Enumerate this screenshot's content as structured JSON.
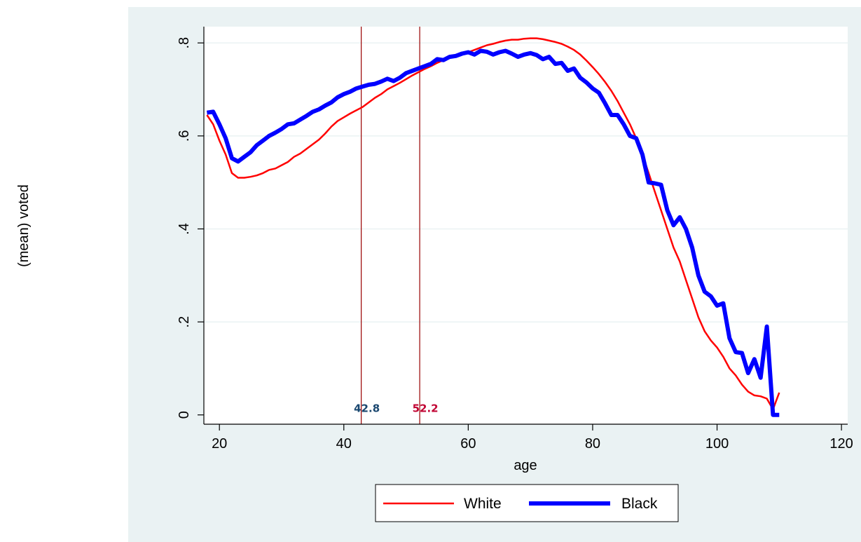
{
  "chart_data": {
    "type": "line",
    "title": "",
    "xlabel": "age",
    "ylabel": "(mean) voted",
    "xlim": [
      17.5,
      121
    ],
    "ylim": [
      -0.02,
      0.835
    ],
    "x_ticks": [
      20,
      40,
      60,
      80,
      100,
      120
    ],
    "x_tick_labels": [
      "20",
      "40",
      "60",
      "80",
      "100",
      "120"
    ],
    "y_ticks": [
      0,
      0.2,
      0.4,
      0.6,
      0.8
    ],
    "y_tick_labels": [
      "0",
      ".2",
      ".4",
      ".6",
      ".8"
    ],
    "y_tick_labels_rotated": true,
    "grid": "horizontal",
    "colors": {
      "outer_background": "#eaf2f3",
      "plot_background": "#ffffff",
      "grid": "#eaf2f3",
      "white_series": "#ff0000",
      "black_series": "#0000ff",
      "reference_lines": "#990000",
      "label_42": "#1a476f",
      "label_52": "#c10534"
    },
    "reference_lines": [
      {
        "x": 42.8,
        "label": "42.8",
        "color": "#1a476f"
      },
      {
        "x": 52.2,
        "label": "52.2",
        "color": "#c10534"
      }
    ],
    "legend": {
      "position": "bottom-center",
      "entries": [
        "White",
        "Black"
      ]
    },
    "series": [
      {
        "name": "White",
        "color": "#ff0000",
        "width": "thin",
        "points": [
          [
            18,
            0.645
          ],
          [
            19,
            0.625
          ],
          [
            20,
            0.59
          ],
          [
            21,
            0.56
          ],
          [
            22,
            0.52
          ],
          [
            23,
            0.51
          ],
          [
            24,
            0.51
          ],
          [
            25,
            0.512
          ],
          [
            26,
            0.515
          ],
          [
            27,
            0.52
          ],
          [
            28,
            0.527
          ],
          [
            29,
            0.53
          ],
          [
            30,
            0.537
          ],
          [
            31,
            0.544
          ],
          [
            32,
            0.555
          ],
          [
            33,
            0.562
          ],
          [
            34,
            0.572
          ],
          [
            35,
            0.582
          ],
          [
            36,
            0.592
          ],
          [
            37,
            0.605
          ],
          [
            38,
            0.62
          ],
          [
            39,
            0.632
          ],
          [
            40,
            0.64
          ],
          [
            41,
            0.648
          ],
          [
            42,
            0.655
          ],
          [
            43,
            0.662
          ],
          [
            44,
            0.672
          ],
          [
            45,
            0.682
          ],
          [
            46,
            0.69
          ],
          [
            47,
            0.7
          ],
          [
            48,
            0.707
          ],
          [
            49,
            0.714
          ],
          [
            50,
            0.722
          ],
          [
            51,
            0.73
          ],
          [
            52,
            0.737
          ],
          [
            53,
            0.744
          ],
          [
            54,
            0.75
          ],
          [
            55,
            0.757
          ],
          [
            56,
            0.763
          ],
          [
            57,
            0.768
          ],
          [
            58,
            0.772
          ],
          [
            59,
            0.776
          ],
          [
            60,
            0.78
          ],
          [
            61,
            0.785
          ],
          [
            62,
            0.79
          ],
          [
            63,
            0.795
          ],
          [
            64,
            0.798
          ],
          [
            65,
            0.802
          ],
          [
            66,
            0.805
          ],
          [
            67,
            0.807
          ],
          [
            68,
            0.807
          ],
          [
            69,
            0.809
          ],
          [
            70,
            0.81
          ],
          [
            71,
            0.81
          ],
          [
            72,
            0.808
          ],
          [
            73,
            0.805
          ],
          [
            74,
            0.802
          ],
          [
            75,
            0.798
          ],
          [
            76,
            0.792
          ],
          [
            77,
            0.785
          ],
          [
            78,
            0.775
          ],
          [
            79,
            0.762
          ],
          [
            80,
            0.748
          ],
          [
            81,
            0.733
          ],
          [
            82,
            0.716
          ],
          [
            83,
            0.697
          ],
          [
            84,
            0.675
          ],
          [
            85,
            0.65
          ],
          [
            86,
            0.625
          ],
          [
            87,
            0.595
          ],
          [
            88,
            0.56
          ],
          [
            89,
            0.52
          ],
          [
            90,
            0.48
          ],
          [
            91,
            0.44
          ],
          [
            92,
            0.4
          ],
          [
            93,
            0.36
          ],
          [
            94,
            0.33
          ],
          [
            95,
            0.29
          ],
          [
            96,
            0.25
          ],
          [
            97,
            0.21
          ],
          [
            98,
            0.18
          ],
          [
            99,
            0.16
          ],
          [
            100,
            0.145
          ],
          [
            101,
            0.125
          ],
          [
            102,
            0.1
          ],
          [
            103,
            0.085
          ],
          [
            104,
            0.065
          ],
          [
            105,
            0.05
          ],
          [
            106,
            0.042
          ],
          [
            107,
            0.04
          ],
          [
            108,
            0.035
          ],
          [
            109,
            0.012
          ],
          [
            110,
            0.048
          ]
        ]
      },
      {
        "name": "Black",
        "color": "#0000ff",
        "width": "thick",
        "points": [
          [
            18,
            0.65
          ],
          [
            19,
            0.652
          ],
          [
            20,
            0.625
          ],
          [
            21,
            0.595
          ],
          [
            22,
            0.552
          ],
          [
            23,
            0.545
          ],
          [
            24,
            0.555
          ],
          [
            25,
            0.565
          ],
          [
            26,
            0.58
          ],
          [
            27,
            0.59
          ],
          [
            28,
            0.6
          ],
          [
            29,
            0.607
          ],
          [
            30,
            0.615
          ],
          [
            31,
            0.625
          ],
          [
            32,
            0.627
          ],
          [
            33,
            0.635
          ],
          [
            34,
            0.643
          ],
          [
            35,
            0.652
          ],
          [
            36,
            0.657
          ],
          [
            37,
            0.665
          ],
          [
            38,
            0.672
          ],
          [
            39,
            0.683
          ],
          [
            40,
            0.69
          ],
          [
            41,
            0.695
          ],
          [
            42,
            0.702
          ],
          [
            43,
            0.706
          ],
          [
            44,
            0.71
          ],
          [
            45,
            0.712
          ],
          [
            46,
            0.717
          ],
          [
            47,
            0.723
          ],
          [
            48,
            0.718
          ],
          [
            49,
            0.725
          ],
          [
            50,
            0.735
          ],
          [
            51,
            0.74
          ],
          [
            52,
            0.745
          ],
          [
            53,
            0.75
          ],
          [
            54,
            0.755
          ],
          [
            55,
            0.765
          ],
          [
            56,
            0.763
          ],
          [
            57,
            0.77
          ],
          [
            58,
            0.772
          ],
          [
            59,
            0.777
          ],
          [
            60,
            0.78
          ],
          [
            61,
            0.775
          ],
          [
            62,
            0.783
          ],
          [
            63,
            0.781
          ],
          [
            64,
            0.775
          ],
          [
            65,
            0.78
          ],
          [
            66,
            0.783
          ],
          [
            67,
            0.777
          ],
          [
            68,
            0.77
          ],
          [
            69,
            0.775
          ],
          [
            70,
            0.778
          ],
          [
            71,
            0.774
          ],
          [
            72,
            0.765
          ],
          [
            73,
            0.77
          ],
          [
            74,
            0.755
          ],
          [
            75,
            0.757
          ],
          [
            76,
            0.74
          ],
          [
            77,
            0.745
          ],
          [
            78,
            0.725
          ],
          [
            79,
            0.715
          ],
          [
            80,
            0.702
          ],
          [
            81,
            0.693
          ],
          [
            82,
            0.67
          ],
          [
            83,
            0.645
          ],
          [
            84,
            0.645
          ],
          [
            85,
            0.625
          ],
          [
            86,
            0.6
          ],
          [
            87,
            0.595
          ],
          [
            88,
            0.56
          ],
          [
            89,
            0.5
          ],
          [
            90,
            0.498
          ],
          [
            91,
            0.495
          ],
          [
            92,
            0.44
          ],
          [
            93,
            0.408
          ],
          [
            94,
            0.425
          ],
          [
            95,
            0.4
          ],
          [
            96,
            0.36
          ],
          [
            97,
            0.3
          ],
          [
            98,
            0.265
          ],
          [
            99,
            0.255
          ],
          [
            100,
            0.235
          ],
          [
            101,
            0.24
          ],
          [
            102,
            0.165
          ],
          [
            103,
            0.135
          ],
          [
            104,
            0.133
          ],
          [
            105,
            0.09
          ],
          [
            106,
            0.12
          ],
          [
            107,
            0.08
          ],
          [
            108,
            0.19
          ],
          [
            109,
            0.0
          ],
          [
            110,
            0.0
          ]
        ]
      }
    ]
  }
}
